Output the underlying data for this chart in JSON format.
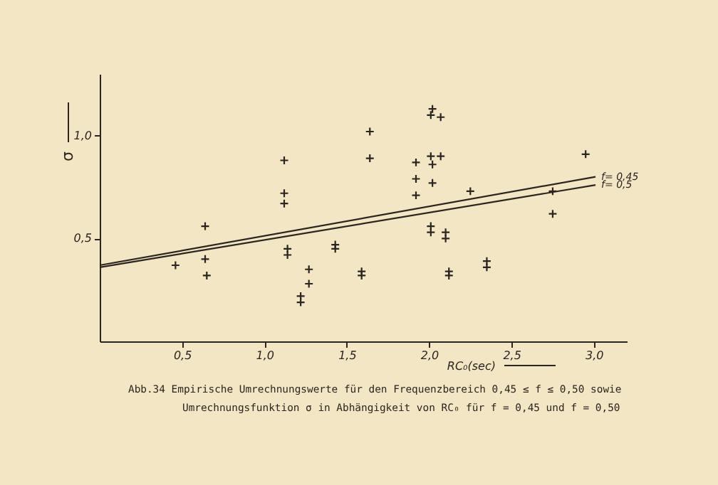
{
  "chart_data": {
    "type": "scatter",
    "xlabel": "RC₀(sec)",
    "ylabel": "σ",
    "xlim": [
      0,
      3.2
    ],
    "ylim": [
      0,
      1.3
    ],
    "xticks": [
      {
        "value": 0.5,
        "label": "0,5"
      },
      {
        "value": 1.0,
        "label": "1,0"
      },
      {
        "value": 1.5,
        "label": "1,5"
      },
      {
        "value": 2.0,
        "label": "2,0"
      },
      {
        "value": 2.5,
        "label": "2,5"
      },
      {
        "value": 3.0,
        "label": "3,0"
      }
    ],
    "yticks": [
      {
        "value": 0.5,
        "label": "0,5"
      },
      {
        "value": 1.0,
        "label": "1,0"
      }
    ],
    "grid": false,
    "series": [
      {
        "marker": "cross",
        "color": "#2a2520",
        "x": [
          0.46,
          0.64,
          0.64,
          0.65,
          1.12,
          1.12,
          1.12,
          1.14,
          1.14,
          1.27,
          1.27,
          1.22,
          1.22,
          1.43,
          1.43,
          1.59,
          1.59,
          1.64,
          1.64,
          1.92,
          1.92,
          1.92,
          2.01,
          2.02,
          2.02,
          2.07,
          2.01,
          2.02,
          2.07,
          2.01,
          2.01,
          2.1,
          2.1,
          2.12,
          2.12,
          2.25,
          2.35,
          2.35,
          2.75,
          2.75,
          2.95
        ],
        "values": [
          0.37,
          0.56,
          0.4,
          0.32,
          0.88,
          0.72,
          0.67,
          0.45,
          0.42,
          0.35,
          0.28,
          0.22,
          0.19,
          0.47,
          0.45,
          0.34,
          0.32,
          1.02,
          0.89,
          0.87,
          0.79,
          0.71,
          0.9,
          0.86,
          0.77,
          0.9,
          1.1,
          1.13,
          1.09,
          0.56,
          0.53,
          0.53,
          0.5,
          0.34,
          0.32,
          0.73,
          0.39,
          0.36,
          0.73,
          0.62,
          0.91
        ]
      },
      {
        "type": "line",
        "name": "f= 0,45",
        "color": "#2a2520",
        "x": [
          0,
          3.01
        ],
        "values": [
          0.37,
          0.8
        ]
      },
      {
        "type": "line",
        "name": "f= 0,5",
        "color": "#2a2520",
        "x": [
          0,
          3.01
        ],
        "values": [
          0.36,
          0.76
        ]
      }
    ],
    "annotations": [
      "Abb.34  Empirische Umrechnungswerte für den Frequenzbereich 0,45 ≤ f ≤ 0,50 sowie",
      "Umrechnungsfunktion σ in Abhängigkeit von RC₀ für f = 0,45 und f = 0,50"
    ]
  }
}
